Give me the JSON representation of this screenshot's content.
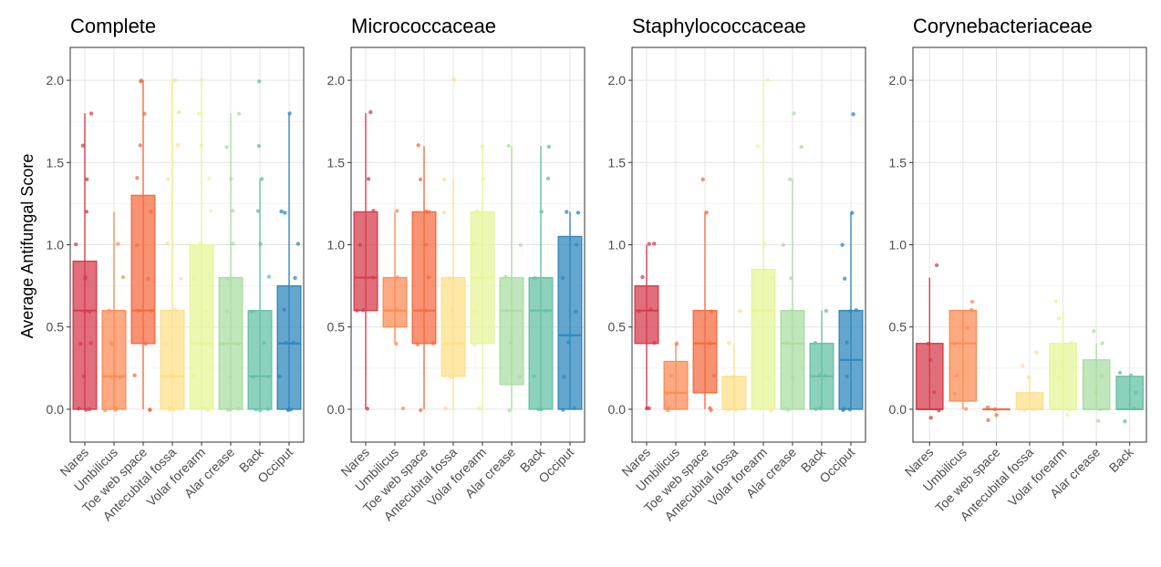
{
  "figure": {
    "ylabel": "Average Antifungal Score",
    "site_colors": {
      "Nares": "#D53E4F",
      "Umbilicus": "#FC8D59",
      "Toe web space": "#F46D43",
      "Antecubital fossa": "#FEE08B",
      "Volar forearm": "#E6F598",
      "Alar crease": "#ABDDA4",
      "Back": "#66C2A5",
      "Occiput": "#3288BD"
    },
    "y_ticks": [
      "0.0",
      "0.5",
      "1.0",
      "1.5",
      "2.0"
    ]
  },
  "chart_data": [
    {
      "type": "box",
      "title": "Complete",
      "ylabel": "Average Antifungal Score",
      "ylim": [
        -0.2,
        2.2
      ],
      "grid": true,
      "categories": [
        "Nares",
        "Umbilicus",
        "Toe web space",
        "Antecubital fossa",
        "Volar forearm",
        "Alar crease",
        "Back",
        "Occiput"
      ],
      "boxes": [
        {
          "min": 0.0,
          "q1": 0.0,
          "median": 0.6,
          "q3": 0.9,
          "max": 1.8,
          "points": [
            0,
            0,
            0,
            0.2,
            0.4,
            0.4,
            0.6,
            0.6,
            0.8,
            0.8,
            1.0,
            1.2,
            1.4,
            1.6,
            1.8
          ]
        },
        {
          "min": 0.0,
          "q1": 0.0,
          "median": 0.2,
          "q3": 0.6,
          "max": 1.2,
          "points": [
            0,
            0,
            0,
            0.2,
            0.2,
            0.4,
            0.4,
            0.6,
            0.8,
            1.0
          ]
        },
        {
          "min": 0.0,
          "q1": 0.4,
          "median": 0.6,
          "q3": 1.3,
          "max": 2.0,
          "points": [
            0,
            0,
            0.2,
            0.4,
            0.6,
            0.6,
            0.8,
            1.0,
            1.2,
            1.4,
            1.6,
            1.8,
            2.0,
            2.0
          ]
        },
        {
          "min": 0.0,
          "q1": 0.0,
          "median": 0.2,
          "q3": 0.6,
          "max": 2.0,
          "points": [
            0,
            0,
            0,
            0.2,
            0.2,
            0.4,
            0.6,
            0.8,
            1.0,
            1.4,
            1.6,
            1.8,
            2.0
          ]
        },
        {
          "min": 0.0,
          "q1": 0.0,
          "median": 0.4,
          "q3": 1.0,
          "max": 2.0,
          "points": [
            0,
            0,
            0,
            0.2,
            0.4,
            0.4,
            0.6,
            0.8,
            1.0,
            1.2,
            1.4,
            1.6,
            1.8,
            2.0
          ]
        },
        {
          "min": 0.0,
          "q1": 0.0,
          "median": 0.4,
          "q3": 0.8,
          "max": 1.8,
          "points": [
            0,
            0,
            0,
            0.2,
            0.4,
            0.4,
            0.6,
            0.8,
            1.0,
            1.2,
            1.4,
            1.6,
            1.8
          ]
        },
        {
          "min": 0.0,
          "q1": 0.0,
          "median": 0.2,
          "q3": 0.6,
          "max": 1.4,
          "points": [
            0,
            0,
            0,
            0.2,
            0.2,
            0.4,
            0.6,
            0.8,
            1.0,
            1.2,
            1.4,
            1.6,
            2.0
          ]
        },
        {
          "min": 0.0,
          "q1": 0.0,
          "median": 0.4,
          "q3": 0.75,
          "max": 1.8,
          "points": [
            0,
            0,
            0,
            0.2,
            0.4,
            0.4,
            0.6,
            0.8,
            1.0,
            1.2,
            1.2,
            1.8
          ]
        }
      ]
    },
    {
      "type": "box",
      "title": "Micrococcaceae",
      "ylim": [
        -0.2,
        2.2
      ],
      "grid": true,
      "categories": [
        "Nares",
        "Umbilicus",
        "Toe web space",
        "Antecubital fossa",
        "Volar forearm",
        "Alar crease",
        "Back",
        "Occiput"
      ],
      "boxes": [
        {
          "min": 0.0,
          "q1": 0.6,
          "median": 0.8,
          "q3": 1.2,
          "max": 1.8,
          "points": [
            0.0,
            0.6,
            0.6,
            0.8,
            1.0,
            1.2,
            1.4,
            1.8
          ]
        },
        {
          "min": 0.4,
          "q1": 0.5,
          "median": 0.6,
          "q3": 0.8,
          "max": 1.2,
          "points": [
            0.0,
            0.4,
            0.6,
            0.8,
            1.2
          ]
        },
        {
          "min": 0.0,
          "q1": 0.4,
          "median": 0.6,
          "q3": 1.2,
          "max": 1.6,
          "points": [
            0.0,
            0.4,
            0.4,
            0.6,
            0.8,
            1.0,
            1.2,
            1.2,
            1.4,
            1.6
          ]
        },
        {
          "min": 0.0,
          "q1": 0.2,
          "median": 0.4,
          "q3": 0.8,
          "max": 1.4,
          "points": [
            0.0,
            0.2,
            0.4,
            0.6,
            0.8,
            1.2,
            1.4,
            2.0
          ]
        },
        {
          "min": 0.0,
          "q1": 0.4,
          "median": 0.8,
          "q3": 1.2,
          "max": 1.6,
          "points": [
            0.0,
            0.4,
            0.6,
            0.8,
            1.0,
            1.2,
            1.4,
            1.6
          ]
        },
        {
          "min": 0.0,
          "q1": 0.15,
          "median": 0.6,
          "q3": 0.8,
          "max": 1.6,
          "points": [
            0.0,
            0.2,
            0.4,
            0.6,
            0.8,
            1.0,
            1.6
          ]
        },
        {
          "min": 0.0,
          "q1": 0.0,
          "median": 0.6,
          "q3": 0.8,
          "max": 1.6,
          "points": [
            0.0,
            0.0,
            0.2,
            0.6,
            0.8,
            1.2,
            1.4,
            1.6
          ]
        },
        {
          "min": 0.0,
          "q1": 0.0,
          "median": 0.45,
          "q3": 1.05,
          "max": 1.2,
          "points": [
            0.0,
            0.0,
            0.2,
            0.4,
            0.6,
            0.8,
            1.0,
            1.2,
            1.2
          ]
        }
      ]
    },
    {
      "type": "box",
      "title": "Staphylococcaceae",
      "ylim": [
        -0.2,
        2.2
      ],
      "grid": true,
      "categories": [
        "Nares",
        "Umbilicus",
        "Toe web space",
        "Antecubital fossa",
        "Volar forearm",
        "Alar crease",
        "Back",
        "Occiput"
      ],
      "boxes": [
        {
          "min": 0.0,
          "q1": 0.4,
          "median": 0.6,
          "q3": 0.75,
          "max": 1.0,
          "points": [
            0.0,
            0.0,
            0.4,
            0.6,
            0.6,
            0.8,
            1.0,
            1.0
          ]
        },
        {
          "min": 0.0,
          "q1": 0.0,
          "median": 0.1,
          "q3": 0.29,
          "max": 0.4,
          "points": [
            0.0,
            0.0,
            0.1,
            0.2,
            0.4,
            0.4
          ]
        },
        {
          "min": 0.0,
          "q1": 0.1,
          "median": 0.4,
          "q3": 0.6,
          "max": 1.2,
          "points": [
            0.0,
            0.0,
            0.2,
            0.4,
            0.6,
            1.2,
            1.4
          ]
        },
        {
          "min": 0.0,
          "q1": 0.0,
          "median": 0.0,
          "q3": 0.2,
          "max": 0.4,
          "points": [
            0.0,
            0.0,
            0.2,
            0.4,
            0.6
          ]
        },
        {
          "min": 0.0,
          "q1": 0.0,
          "median": 0.6,
          "q3": 0.85,
          "max": 2.0,
          "points": [
            0.0,
            0.0,
            0.2,
            0.6,
            0.8,
            1.0,
            1.6,
            2.0
          ]
        },
        {
          "min": 0.0,
          "q1": 0.0,
          "median": 0.4,
          "q3": 0.6,
          "max": 1.4,
          "points": [
            0.0,
            0.0,
            0.2,
            0.4,
            0.6,
            0.8,
            1.0,
            1.4,
            1.6,
            1.8
          ]
        },
        {
          "min": 0.0,
          "q1": 0.0,
          "median": 0.2,
          "q3": 0.4,
          "max": 0.6,
          "points": [
            0.0,
            0.0,
            0.2,
            0.2,
            0.4,
            0.6
          ]
        },
        {
          "min": 0.0,
          "q1": 0.0,
          "median": 0.3,
          "q3": 0.6,
          "max": 1.2,
          "points": [
            0.0,
            0.0,
            0.0,
            0.2,
            0.4,
            0.6,
            0.6,
            0.8,
            1.0,
            1.2,
            1.8
          ]
        }
      ]
    },
    {
      "type": "box",
      "title": "Corynebacteriaceae",
      "ylim": [
        -0.2,
        2.2
      ],
      "grid": true,
      "categories": [
        "Nares",
        "Umbilicus",
        "Toe web space",
        "Antecubital fossa",
        "Volar forearm",
        "Alar crease",
        "Back"
      ],
      "boxes": [
        {
          "min": 0.0,
          "q1": 0.0,
          "median": 0.0,
          "q3": 0.4,
          "max": 0.8,
          "points": [
            -0.05,
            0.0,
            0.1,
            0.3,
            0.4,
            0.87
          ]
        },
        {
          "min": 0.0,
          "q1": 0.05,
          "median": 0.4,
          "q3": 0.6,
          "max": 0.6,
          "points": [
            0.0,
            0.1,
            0.2,
            0.4,
            0.5,
            0.6,
            0.65
          ]
        },
        {
          "min": 0.0,
          "q1": 0.0,
          "median": 0.0,
          "q3": 0.0,
          "max": 0.0,
          "points": [
            -0.07,
            -0.04,
            0.0,
            0.01
          ]
        },
        {
          "min": 0.0,
          "q1": 0.0,
          "median": 0.0,
          "q3": 0.1,
          "max": 0.2,
          "points": [
            0.0,
            0.0,
            0.2,
            0.27,
            0.35
          ]
        },
        {
          "min": 0.0,
          "q1": 0.0,
          "median": 0.0,
          "q3": 0.4,
          "max": 0.6,
          "points": [
            -0.04,
            0.0,
            0.2,
            0.4,
            0.55,
            0.66
          ]
        },
        {
          "min": 0.0,
          "q1": 0.0,
          "median": 0.0,
          "q3": 0.3,
          "max": 0.4,
          "points": [
            -0.07,
            0.0,
            0.1,
            0.2,
            0.4,
            0.48
          ]
        },
        {
          "min": 0.0,
          "q1": 0.0,
          "median": 0.0,
          "q3": 0.2,
          "max": 0.2,
          "points": [
            -0.07,
            0.0,
            0.1,
            0.2,
            0.22
          ]
        }
      ]
    }
  ]
}
